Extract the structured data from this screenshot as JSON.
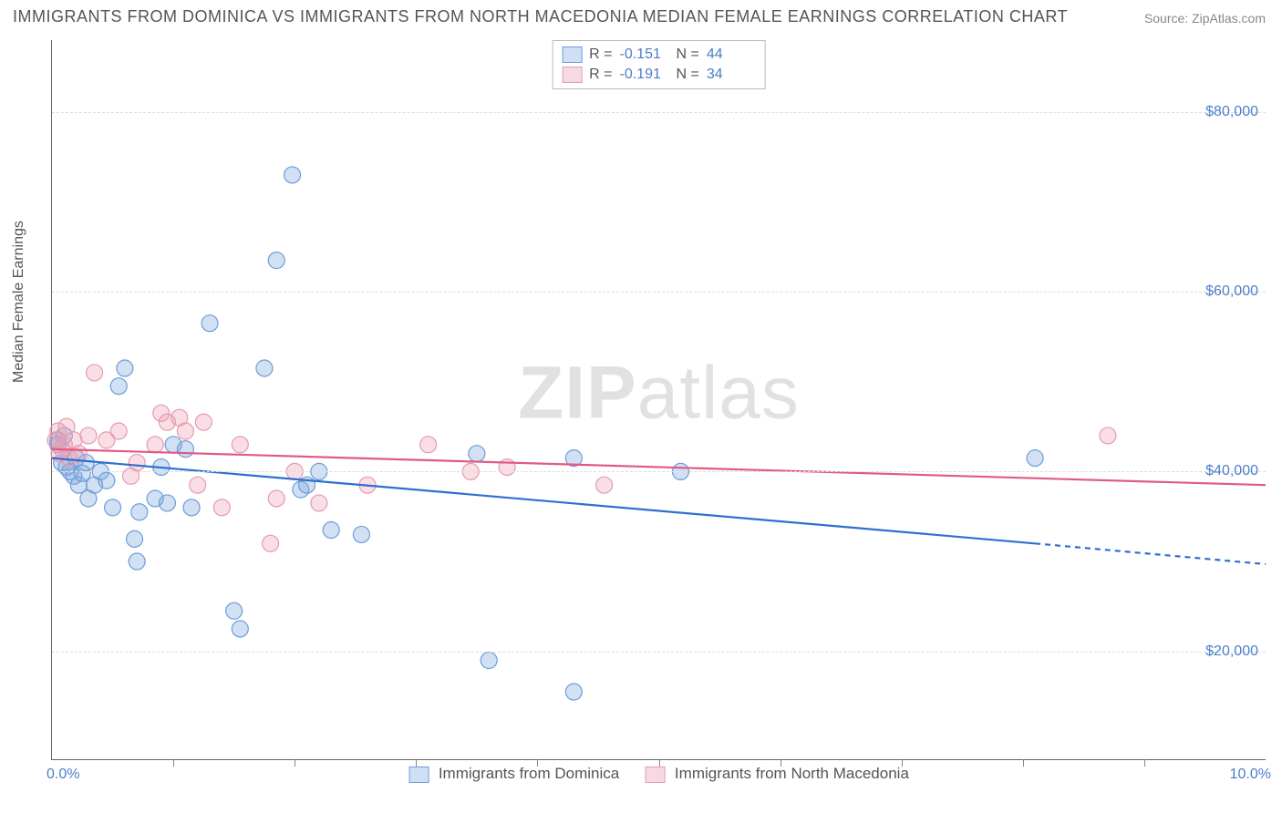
{
  "title": "IMMIGRANTS FROM DOMINICA VS IMMIGRANTS FROM NORTH MACEDONIA MEDIAN FEMALE EARNINGS CORRELATION CHART",
  "source": "Source: ZipAtlas.com",
  "ylabel": "Median Female Earnings",
  "watermark_a": "ZIP",
  "watermark_b": "atlas",
  "chart": {
    "type": "scatter",
    "xlim": [
      0,
      10
    ],
    "ylim": [
      8000,
      88000
    ],
    "xticks": [
      {
        "pos": 0.0,
        "label": "0.0%"
      },
      {
        "pos": 10.0,
        "label": "10.0%"
      }
    ],
    "xtick_marks": [
      1,
      2,
      3,
      4,
      5,
      6,
      7,
      8,
      9
    ],
    "yticks": [
      {
        "pos": 20000,
        "label": "$20,000"
      },
      {
        "pos": 40000,
        "label": "$40,000"
      },
      {
        "pos": 60000,
        "label": "$60,000"
      },
      {
        "pos": 80000,
        "label": "$80,000"
      }
    ],
    "grid_y": [
      20000,
      40000,
      60000,
      80000
    ],
    "grid_color": "#dddddd",
    "background_color": "#ffffff",
    "series": [
      {
        "name": "Immigrants from Dominica",
        "color_fill": "rgba(124,166,222,0.35)",
        "color_stroke": "#6d9dd8",
        "swatch_fill": "#cfe0f4",
        "swatch_stroke": "#6d9dd8",
        "marker_radius": 9,
        "R": "-0.151",
        "N": "44",
        "trend": {
          "solid": {
            "x1": 0.0,
            "y1": 41500,
            "x2": 8.1,
            "y2": 32000
          },
          "dashed": {
            "x1": 8.1,
            "y1": 32000,
            "x2": 10.0,
            "y2": 29700
          },
          "stroke": "#2e6fd0",
          "width": 2.2
        },
        "points": [
          {
            "x": 0.05,
            "y": 43500
          },
          {
            "x": 0.08,
            "y": 41000
          },
          {
            "x": 0.1,
            "y": 44000
          },
          {
            "x": 0.12,
            "y": 40500
          },
          {
            "x": 0.15,
            "y": 40000
          },
          {
            "x": 0.18,
            "y": 39500
          },
          {
            "x": 0.2,
            "y": 41500
          },
          {
            "x": 0.22,
            "y": 38500
          },
          {
            "x": 0.25,
            "y": 39800
          },
          {
            "x": 0.28,
            "y": 41000
          },
          {
            "x": 0.3,
            "y": 37000
          },
          {
            "x": 0.35,
            "y": 38500
          },
          {
            "x": 0.4,
            "y": 40000
          },
          {
            "x": 0.45,
            "y": 39000
          },
          {
            "x": 0.5,
            "y": 36000
          },
          {
            "x": 0.55,
            "y": 49500
          },
          {
            "x": 0.6,
            "y": 51500
          },
          {
            "x": 0.68,
            "y": 32500
          },
          {
            "x": 0.7,
            "y": 30000
          },
          {
            "x": 0.72,
            "y": 35500
          },
          {
            "x": 0.85,
            "y": 37000
          },
          {
            "x": 0.9,
            "y": 40500
          },
          {
            "x": 0.95,
            "y": 36500
          },
          {
            "x": 1.0,
            "y": 43000
          },
          {
            "x": 1.1,
            "y": 42500
          },
          {
            "x": 1.15,
            "y": 36000
          },
          {
            "x": 1.3,
            "y": 56500
          },
          {
            "x": 1.5,
            "y": 24500
          },
          {
            "x": 1.55,
            "y": 22500
          },
          {
            "x": 1.75,
            "y": 51500
          },
          {
            "x": 1.85,
            "y": 63500
          },
          {
            "x": 1.98,
            "y": 73000
          },
          {
            "x": 2.05,
            "y": 38000
          },
          {
            "x": 2.1,
            "y": 38500
          },
          {
            "x": 2.2,
            "y": 40000
          },
          {
            "x": 2.3,
            "y": 33500
          },
          {
            "x": 2.55,
            "y": 33000
          },
          {
            "x": 3.5,
            "y": 42000
          },
          {
            "x": 3.6,
            "y": 19000
          },
          {
            "x": 4.3,
            "y": 15500
          },
          {
            "x": 4.3,
            "y": 41500
          },
          {
            "x": 5.18,
            "y": 40000
          },
          {
            "x": 8.1,
            "y": 41500
          },
          {
            "x": 0.05,
            "y": 43000
          }
        ]
      },
      {
        "name": "Immigrants from North Macedonia",
        "color_fill": "rgba(238,160,180,0.35)",
        "color_stroke": "#e59bb0",
        "swatch_fill": "#f7d9e1",
        "swatch_stroke": "#e59bb0",
        "marker_radius": 9,
        "R": "-0.191",
        "N": "34",
        "trend": {
          "solid": {
            "x1": 0.0,
            "y1": 42500,
            "x2": 10.0,
            "y2": 38500
          },
          "dashed": null,
          "stroke": "#e05a86",
          "width": 2.2
        },
        "points": [
          {
            "x": 0.03,
            "y": 43500
          },
          {
            "x": 0.05,
            "y": 44500
          },
          {
            "x": 0.08,
            "y": 42500
          },
          {
            "x": 0.1,
            "y": 43000
          },
          {
            "x": 0.12,
            "y": 45000
          },
          {
            "x": 0.14,
            "y": 41500
          },
          {
            "x": 0.18,
            "y": 43500
          },
          {
            "x": 0.22,
            "y": 42000
          },
          {
            "x": 0.3,
            "y": 44000
          },
          {
            "x": 0.35,
            "y": 51000
          },
          {
            "x": 0.45,
            "y": 43500
          },
          {
            "x": 0.55,
            "y": 44500
          },
          {
            "x": 0.65,
            "y": 39500
          },
          {
            "x": 0.7,
            "y": 41000
          },
          {
            "x": 0.85,
            "y": 43000
          },
          {
            "x": 0.9,
            "y": 46500
          },
          {
            "x": 0.95,
            "y": 45500
          },
          {
            "x": 1.05,
            "y": 46000
          },
          {
            "x": 1.1,
            "y": 44500
          },
          {
            "x": 1.2,
            "y": 38500
          },
          {
            "x": 1.25,
            "y": 45500
          },
          {
            "x": 1.4,
            "y": 36000
          },
          {
            "x": 1.55,
            "y": 43000
          },
          {
            "x": 1.8,
            "y": 32000
          },
          {
            "x": 1.85,
            "y": 37000
          },
          {
            "x": 2.0,
            "y": 40000
          },
          {
            "x": 2.2,
            "y": 36500
          },
          {
            "x": 2.6,
            "y": 38500
          },
          {
            "x": 3.1,
            "y": 43000
          },
          {
            "x": 3.45,
            "y": 40000
          },
          {
            "x": 3.75,
            "y": 40500
          },
          {
            "x": 4.55,
            "y": 38500
          },
          {
            "x": 8.7,
            "y": 44000
          },
          {
            "x": 0.06,
            "y": 42000
          }
        ]
      }
    ],
    "legend_labels": {
      "r_label": "R =",
      "n_label": "N ="
    }
  }
}
